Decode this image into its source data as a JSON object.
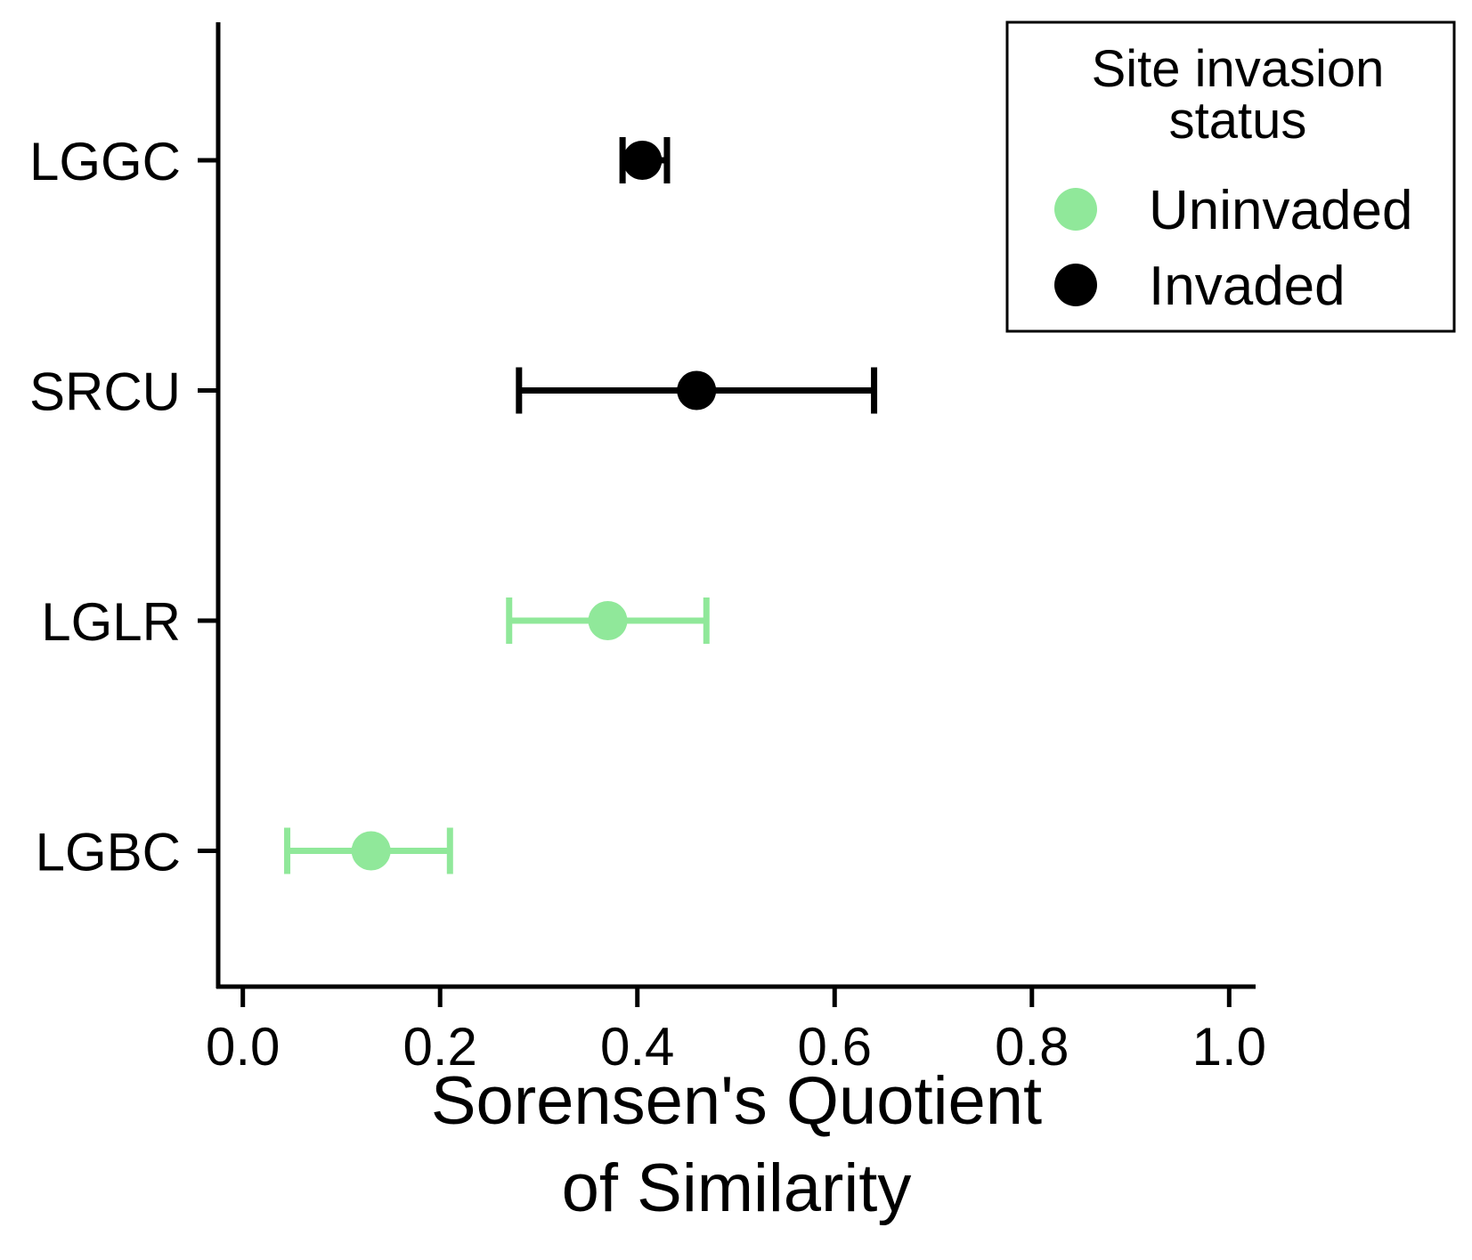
{
  "chart_data": {
    "type": "scatter",
    "title": "",
    "xlabel": [
      "Sorensen's Quotient",
      "of Similarity"
    ],
    "ylabel": "",
    "xlim": [
      -0.025,
      1.025
    ],
    "xticks": [
      "0.0",
      "0.2",
      "0.4",
      "0.6",
      "0.8",
      "1.0"
    ],
    "categories": [
      "LGGC",
      "SRCU",
      "LGLR",
      "LGBC"
    ],
    "legend": {
      "title": [
        "Site invasion",
        "status"
      ],
      "position": "top-right",
      "entries": [
        {
          "label": "Uninvaded",
          "color": "#90e89a"
        },
        {
          "label": "Invaded",
          "color": "#000000"
        }
      ]
    },
    "points": [
      {
        "site": "LGGC",
        "status": "Invaded",
        "value": 0.405,
        "lower": 0.385,
        "upper": 0.43
      },
      {
        "site": "SRCU",
        "status": "Invaded",
        "value": 0.46,
        "lower": 0.28,
        "upper": 0.64
      },
      {
        "site": "LGLR",
        "status": "Uninvaded",
        "value": 0.37,
        "lower": 0.27,
        "upper": 0.47
      },
      {
        "site": "LGBC",
        "status": "Uninvaded",
        "value": 0.13,
        "lower": 0.045,
        "upper": 0.21
      }
    ],
    "grid": false
  }
}
